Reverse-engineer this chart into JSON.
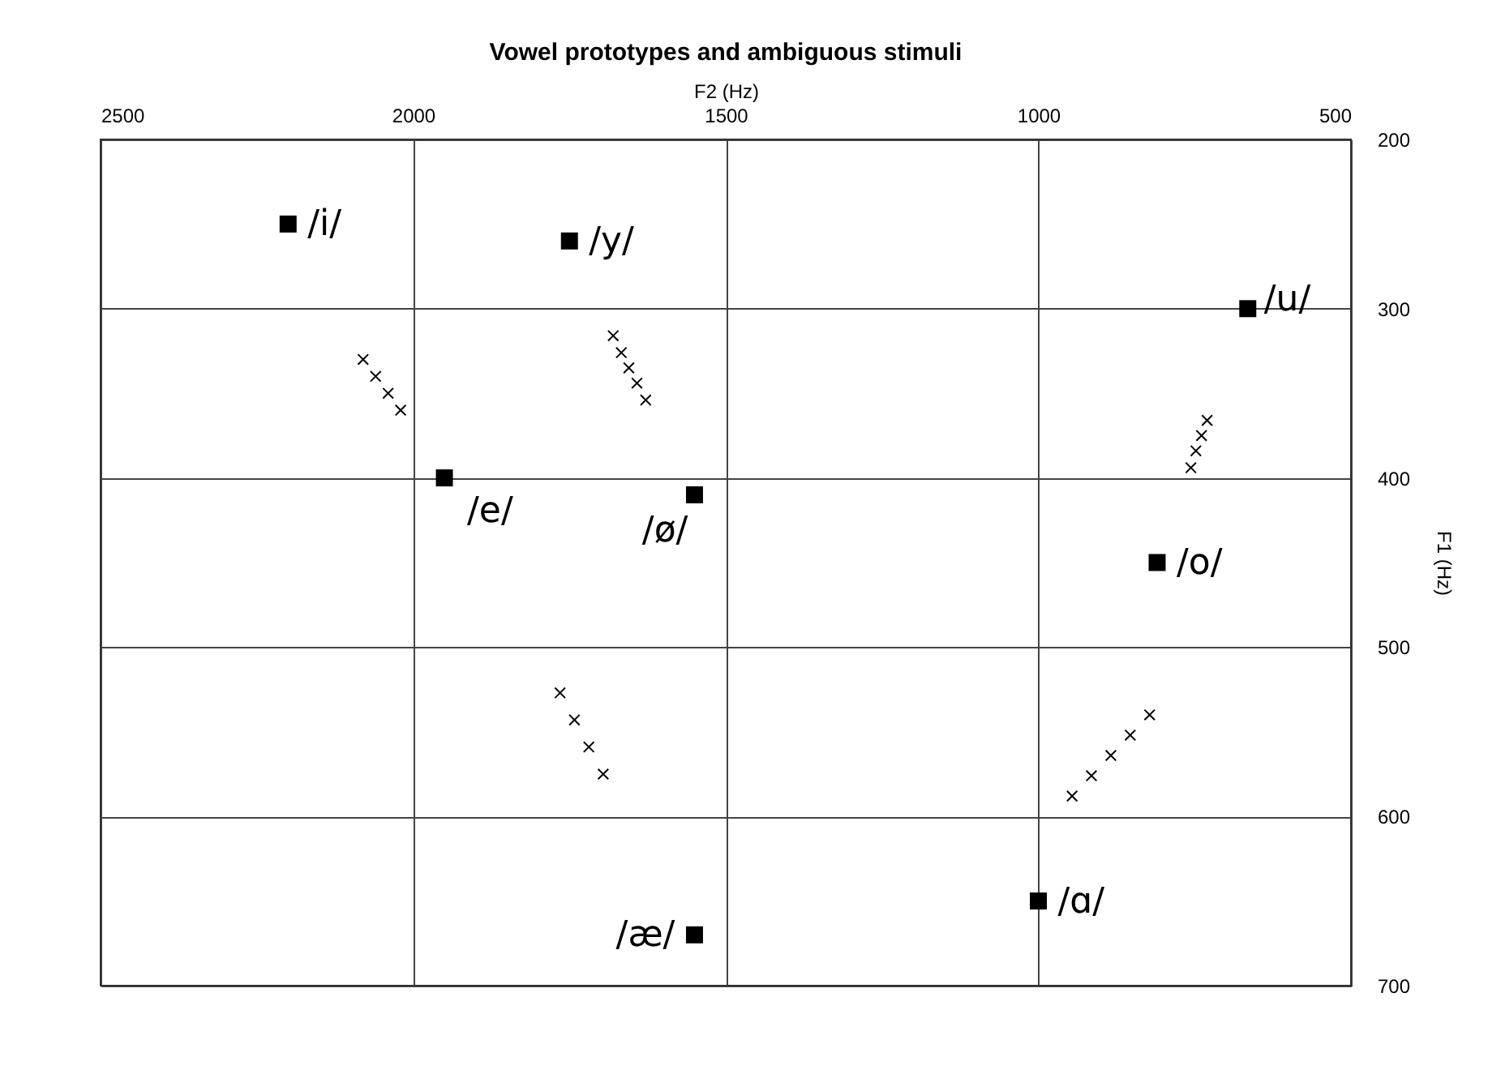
{
  "chart_data": {
    "type": "scatter",
    "title": "Vowel prototypes and ambiguous stimuli",
    "xlabel": "F2 (Hz)",
    "ylabel": "F1 (Hz)",
    "xlim": [
      2500,
      500
    ],
    "xticks": [
      2500,
      2000,
      1500,
      1000,
      500
    ],
    "ylim": [
      700,
      200
    ],
    "yticks": [
      200,
      300,
      400,
      500,
      600,
      700
    ],
    "grid": true,
    "series": [
      {
        "color": "#000000",
        "marker": "square",
        "x": [
          2200,
          1750,
          665,
          1950,
          1550,
          810,
          1550,
          1000
        ],
        "values": [
          250,
          260,
          300,
          400,
          410,
          450,
          670,
          650
        ]
      },
      {
        "color": "#000000",
        "marker": "cross",
        "x": [
          2080,
          2060,
          2040,
          2020,
          1680,
          1667,
          1655,
          1642,
          1628,
          730,
          739,
          748,
          756,
          1765,
          1742,
          1719,
          1696,
          822,
          853,
          884,
          915,
          946
        ],
        "values": [
          330,
          340,
          350,
          360,
          316,
          326,
          335,
          344,
          354,
          366,
          375,
          384,
          394,
          527,
          543,
          559,
          575,
          540,
          552,
          564,
          576,
          588
        ]
      }
    ],
    "annotations": [
      {
        "text": "/i/",
        "x": 2200,
        "y": 250
      },
      {
        "text": "/y/",
        "x": 1750,
        "y": 260
      },
      {
        "text": "/u/",
        "x": 665,
        "y": 300
      },
      {
        "text": "/e/",
        "x": 1950,
        "y": 400
      },
      {
        "text": "/ø/",
        "x": 1550,
        "y": 410
      },
      {
        "text": "/o/",
        "x": 810,
        "y": 450
      },
      {
        "text": "/æ/",
        "x": 1550,
        "y": 670
      },
      {
        "text": "/ɑ/",
        "x": 1000,
        "y": 650
      }
    ]
  }
}
